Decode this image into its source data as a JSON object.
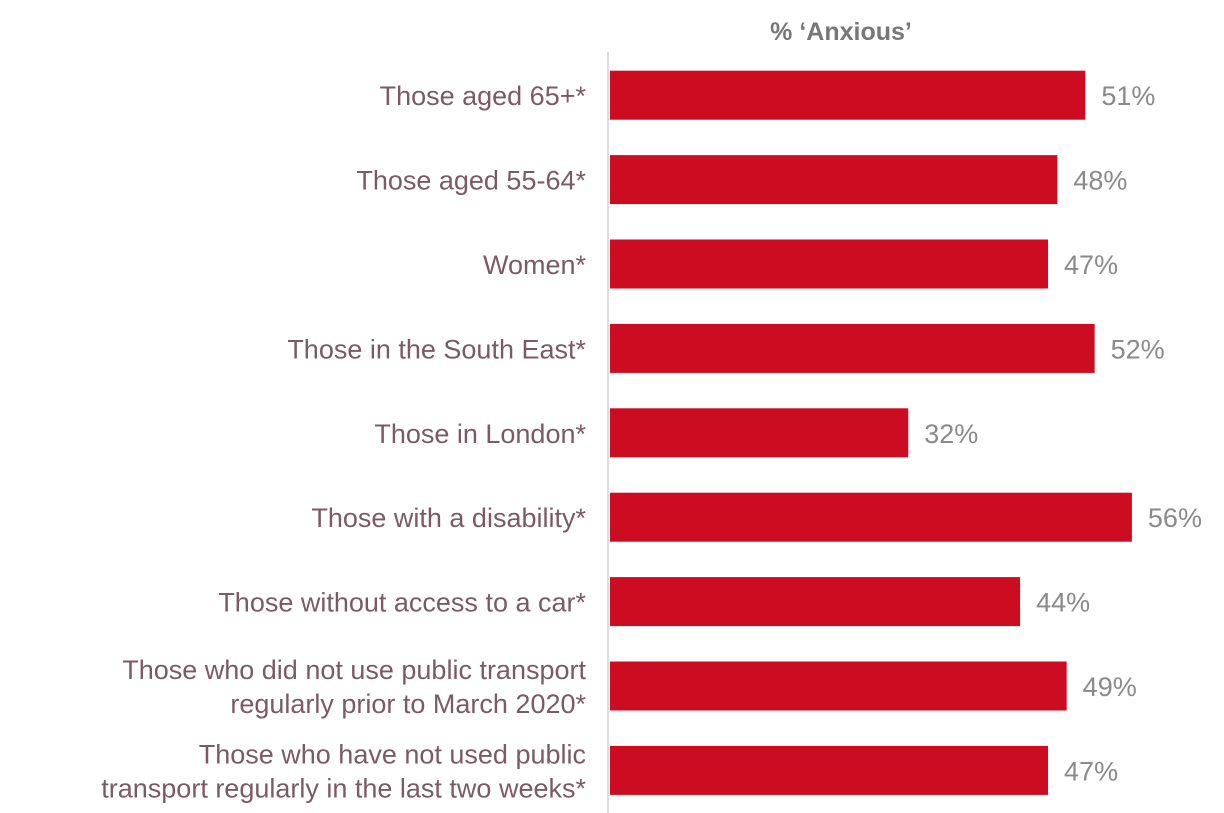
{
  "chart_data": {
    "type": "bar",
    "orientation": "horizontal",
    "title": "% ‘Anxious’",
    "categories": [
      "Those aged 65+*",
      "Those aged 55-64*",
      "Women*",
      "Those in the South East*",
      "Those in London*",
      "Those with a disability*",
      "Those without access to a car*",
      "Those who did not use public transport regularly prior to March 2020*",
      "Those who have not used public transport regularly in the last two weeks*"
    ],
    "category_lines": [
      [
        "Those aged 65+*"
      ],
      [
        "Those aged 55-64*"
      ],
      [
        "Women*"
      ],
      [
        "Those in the South East*"
      ],
      [
        "Those in London*"
      ],
      [
        "Those with a disability*"
      ],
      [
        "Those without access to a car*"
      ],
      [
        "Those who did not use public transport",
        "regularly prior to March 2020*"
      ],
      [
        "Those who have not used public",
        "transport regularly in the last two weeks*"
      ]
    ],
    "values": [
      51,
      48,
      47,
      52,
      32,
      56,
      44,
      49,
      47
    ],
    "value_labels": [
      "51%",
      "48%",
      "47%",
      "52%",
      "32%",
      "56%",
      "44%",
      "49%",
      "47%"
    ],
    "xlim": [
      0,
      60
    ],
    "grid": false,
    "legend": "none"
  },
  "colors": {
    "bar": "#cc0c20",
    "category_text": "#7b5a66",
    "value_text": "#8a8a8a",
    "title_text": "#777777",
    "axis_line": "#d0d0d0"
  }
}
